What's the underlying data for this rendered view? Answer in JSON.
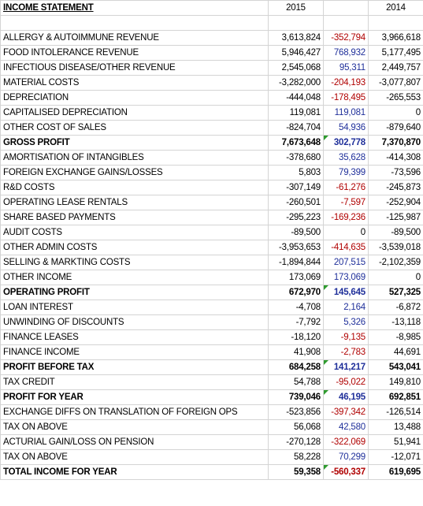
{
  "header": {
    "title": "INCOME STATEMENT",
    "columns": [
      "2015",
      "2014"
    ]
  },
  "rows": [
    {
      "label": "ALLERGY & AUTOIMMUNE REVENUE",
      "values": [
        "3,613,824",
        "-352,794",
        "3,966,618"
      ]
    },
    {
      "label": "FOOD INTOLERANCE REVENUE",
      "values": [
        "5,946,427",
        "768,932",
        "5,177,495"
      ]
    },
    {
      "label": "INFECTIOUS DISEASE/OTHER REVENUE",
      "values": [
        "2,545,068",
        "95,311",
        "2,449,757"
      ]
    },
    {
      "label": "MATERIAL COSTS",
      "values": [
        "-3,282,000",
        "-204,193",
        "-3,077,807"
      ]
    },
    {
      "label": "DEPRECIATION",
      "values": [
        "-444,048",
        "-178,495",
        "-265,553"
      ]
    },
    {
      "label": "CAPITALISED DEPRECIATION",
      "values": [
        "119,081",
        "119,081",
        "0"
      ]
    },
    {
      "label": "OTHER COST OF SALES",
      "values": [
        "-824,704",
        "54,936",
        "-879,640"
      ]
    },
    {
      "label": "GROSS PROFIT",
      "values": [
        "7,673,648",
        "302,778",
        "7,370,870"
      ],
      "bold": true
    },
    {
      "label": "AMORTISATION OF INTANGIBLES",
      "values": [
        "-378,680",
        "35,628",
        "-414,308"
      ]
    },
    {
      "label": "FOREIGN EXCHANGE GAINS/LOSSES",
      "values": [
        "5,803",
        "79,399",
        "-73,596"
      ]
    },
    {
      "label": "R&D COSTS",
      "values": [
        "-307,149",
        "-61,276",
        "-245,873"
      ]
    },
    {
      "label": "OPERATING LEASE RENTALS",
      "values": [
        "-260,501",
        "-7,597",
        "-252,904"
      ]
    },
    {
      "label": "SHARE BASED PAYMENTS",
      "values": [
        "-295,223",
        "-169,236",
        "-125,987"
      ]
    },
    {
      "label": "AUDIT COSTS",
      "values": [
        "-89,500",
        "0",
        "-89,500"
      ]
    },
    {
      "label": "OTHER ADMIN COSTS",
      "values": [
        "-3,953,653",
        "-414,635",
        "-3,539,018"
      ]
    },
    {
      "label": "SELLING & MARKTING COSTS",
      "values": [
        "-1,894,844",
        "207,515",
        "-2,102,359"
      ]
    },
    {
      "label": "OTHER INCOME",
      "values": [
        "173,069",
        "173,069",
        "0"
      ]
    },
    {
      "label": "OPERATING PROFIT",
      "values": [
        "672,970",
        "145,645",
        "527,325"
      ],
      "bold": true
    },
    {
      "label": "LOAN INTEREST",
      "values": [
        "-4,708",
        "2,164",
        "-6,872"
      ]
    },
    {
      "label": "UNWINDING OF DISCOUNTS",
      "values": [
        "-7,792",
        "5,326",
        "-13,118"
      ]
    },
    {
      "label": "FINANCE LEASES",
      "values": [
        "-18,120",
        "-9,135",
        "-8,985"
      ]
    },
    {
      "label": "FINANCE INCOME",
      "values": [
        "41,908",
        "-2,783",
        "44,691"
      ]
    },
    {
      "label": "PROFIT BEFORE TAX",
      "values": [
        "684,258",
        "141,217",
        "543,041"
      ],
      "bold": true
    },
    {
      "label": "TAX CREDIT",
      "values": [
        "54,788",
        "-95,022",
        "149,810"
      ]
    },
    {
      "label": "PROFIT FOR YEAR",
      "values": [
        "739,046",
        "46,195",
        "692,851"
      ],
      "bold": true
    },
    {
      "label": "EXCHANGE DIFFS ON TRANSLATION OF FOREIGN OPS",
      "values": [
        "-523,856",
        "-397,342",
        "-126,514"
      ]
    },
    {
      "label": "TAX ON ABOVE",
      "values": [
        "56,068",
        "42,580",
        "13,488"
      ]
    },
    {
      "label": "ACTURIAL GAIN/LOSS ON PENSION",
      "values": [
        "-270,128",
        "-322,069",
        "51,941"
      ]
    },
    {
      "label": "TAX ON ABOVE",
      "values": [
        "58,228",
        "70,299",
        "-12,071"
      ]
    },
    {
      "label": "TOTAL INCOME FOR YEAR",
      "values": [
        "59,358",
        "-560,337",
        "619,695"
      ],
      "bold": true
    }
  ]
}
